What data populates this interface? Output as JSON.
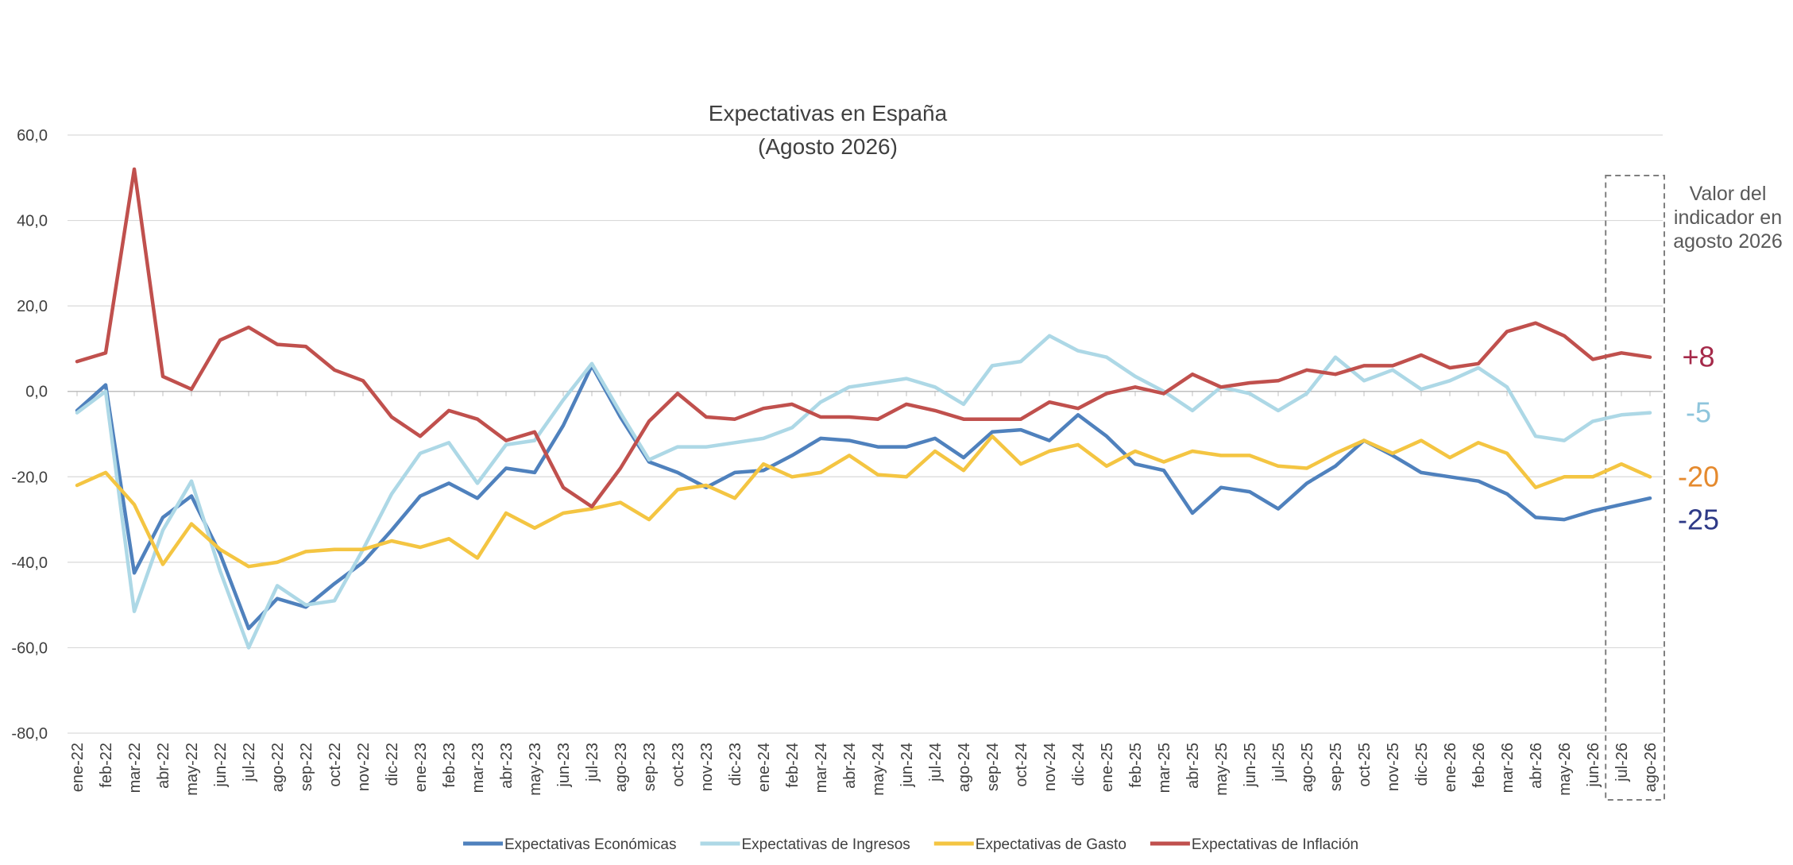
{
  "chart_data": {
    "type": "line",
    "title": "Expectativas en España",
    "subtitle": "(Agosto 2026)",
    "ylim": [
      -80,
      60
    ],
    "yticks": [
      60,
      40,
      20,
      0,
      -20,
      -40,
      -60,
      -80
    ],
    "ytick_labels": [
      "60,0",
      "40,0",
      "20,0",
      "0,0",
      "-20,0",
      "-40,0",
      "-60,0",
      "-80,0"
    ],
    "grid": true,
    "legend_position": "bottom",
    "categories": [
      "ene-22",
      "feb-22",
      "mar-22",
      "abr-22",
      "may-22",
      "jun-22",
      "jul-22",
      "ago-22",
      "sep-22",
      "oct-22",
      "nov-22",
      "dic-22",
      "ene-23",
      "feb-23",
      "mar-23",
      "abr-23",
      "may-23",
      "jun-23",
      "jul-23",
      "ago-23",
      "sep-23",
      "oct-23",
      "nov-23",
      "dic-23",
      "ene-24",
      "feb-24",
      "mar-24",
      "abr-24",
      "may-24",
      "jun-24",
      "jul-24",
      "ago-24",
      "sep-24",
      "oct-24",
      "nov-24",
      "dic-24",
      "ene-25",
      "feb-25",
      "mar-25",
      "abr-25",
      "may-25",
      "jun-25",
      "jul-25",
      "ago-25",
      "sep-25",
      "oct-25",
      "nov-25",
      "dic-25",
      "ene-26",
      "feb-26",
      "mar-26",
      "abr-26",
      "may-26",
      "jun-26",
      "jul-26",
      "ago-26"
    ],
    "series": [
      {
        "name": "Expectativas Económicas",
        "color": "#4f81bd",
        "final_label": "-25",
        "final_label_color": "#2e3a87",
        "values": [
          -4.5,
          1.5,
          -42.5,
          -29.5,
          -24.5,
          -38,
          -55.5,
          -48.5,
          -50.5,
          -45,
          -40,
          -32.5,
          -24.5,
          -21.5,
          -25,
          -18,
          -19,
          -8,
          6,
          -6,
          -16.5,
          -19,
          -22.5,
          -19,
          -18.5,
          -15,
          -11,
          -11.5,
          -13,
          -13,
          -11,
          -15.5,
          -9.5,
          -9,
          -11.5,
          -5.5,
          -10.5,
          -17,
          -18.5,
          -28.5,
          -22.5,
          -23.5,
          -27.5,
          -21.5,
          -17.5,
          -11.5,
          -15,
          -19,
          -20,
          -21,
          -24,
          -29.5,
          -30,
          -28,
          -26.5,
          -25
        ]
      },
      {
        "name": "Expectativas de Ingresos",
        "color": "#add8e6",
        "final_label": "-5",
        "final_label_color": "#8ec5dc",
        "values": [
          -5,
          0,
          -51.5,
          -32.5,
          -21,
          -42,
          -60,
          -45.5,
          -50,
          -49,
          -37,
          -24,
          -14.5,
          -12,
          -21.5,
          -12.5,
          -11.5,
          -2,
          6.5,
          -5,
          -16,
          -13,
          -13,
          -12,
          -11,
          -8.5,
          -2.5,
          1,
          2,
          3,
          1,
          -3,
          6,
          7,
          13,
          9.5,
          8,
          3.5,
          0,
          -4.5,
          1,
          -0.5,
          -4.5,
          -0.5,
          8,
          2.5,
          5,
          0.5,
          2.5,
          5.5,
          1,
          -10.5,
          -11.5,
          -7,
          -5.5,
          -5
        ]
      },
      {
        "name": "Expectativas de Gasto",
        "color": "#f4c542",
        "final_label": "-20",
        "final_label_color": "#e58a2e",
        "values": [
          -22,
          -19,
          -26.5,
          -40.5,
          -31,
          -37,
          -41,
          -40,
          -37.5,
          -37,
          -37,
          -35,
          -36.5,
          -34.5,
          -39,
          -28.5,
          -32,
          -28.5,
          -27.5,
          -26,
          -30,
          -23,
          -22,
          -25,
          -17,
          -20,
          -19,
          -15,
          -19.5,
          -20,
          -14,
          -18.5,
          -10.5,
          -17,
          -14,
          -12.5,
          -17.5,
          -14,
          -16.5,
          -14,
          -15,
          -15,
          -17.5,
          -18,
          -14.5,
          -11.5,
          -14.5,
          -11.5,
          -15.5,
          -12,
          -14.5,
          -22.5,
          -20,
          -20,
          -17,
          -20
        ]
      },
      {
        "name": "Expectativas de Inflación",
        "color": "#c0504d",
        "final_label": "+8",
        "final_label_color": "#a52a4a",
        "values": [
          7,
          9,
          52,
          3.5,
          0.5,
          12,
          15,
          11,
          10.5,
          5,
          2.5,
          -6,
          -10.5,
          -4.5,
          -6.5,
          -11.5,
          -9.5,
          -22.5,
          -27,
          -18,
          -7,
          -0.5,
          -6,
          -6.5,
          -4,
          -3,
          -6,
          -6,
          -6.5,
          -3,
          -4.5,
          -6.5,
          -6.5,
          -6.5,
          -2.5,
          -4,
          -0.5,
          1,
          -0.5,
          4,
          1,
          2,
          2.5,
          5,
          4,
          6,
          6,
          8.5,
          5.5,
          6.5,
          14,
          16,
          13,
          7.5,
          9,
          8
        ]
      }
    ],
    "annotation": {
      "text_lines": [
        "Valor del",
        "indicador en",
        "agosto 2026"
      ]
    }
  }
}
